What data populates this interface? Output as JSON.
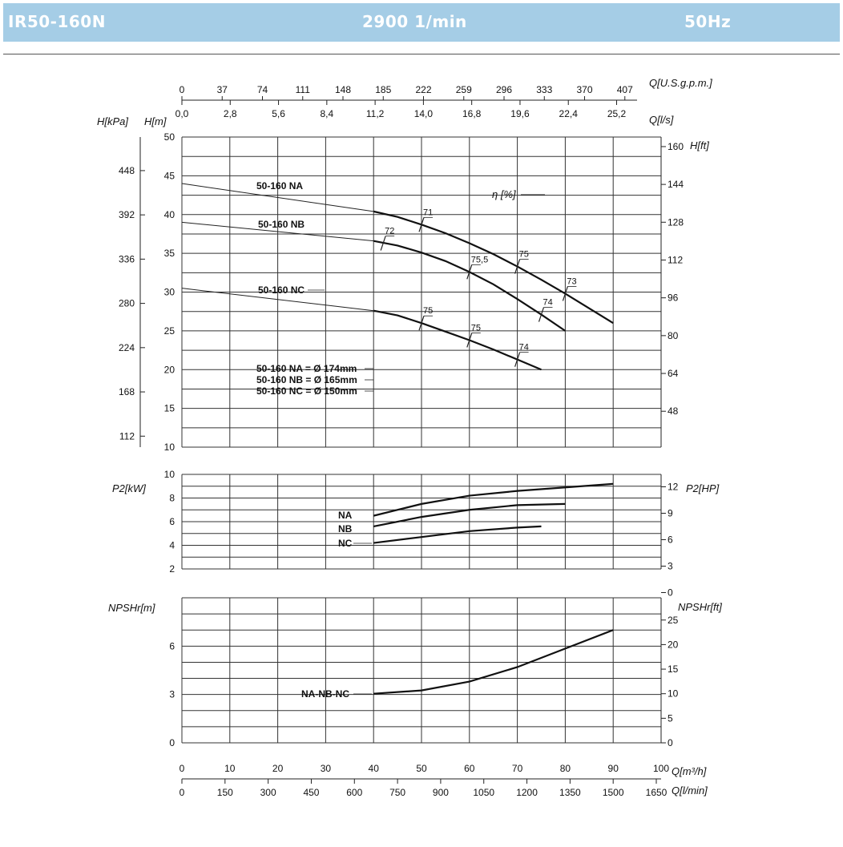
{
  "header": {
    "model": "IR50-160N",
    "speed": "2900 1/min",
    "frequency": "50Hz",
    "color": "#a5cde6"
  },
  "chart_data": {
    "type": "line",
    "flow_scales": {
      "m3h_label": "Q[m³/h]",
      "m3h_ticks": [
        "0",
        "10",
        "20",
        "30",
        "40",
        "50",
        "60",
        "70",
        "80",
        "90",
        "100"
      ],
      "lmin_label": "Q[l/min]",
      "lmin_ticks": [
        "0",
        "150",
        "300",
        "450",
        "600",
        "750",
        "900",
        "1050",
        "1200",
        "1350",
        "1500",
        "1650"
      ],
      "usgpm_label": "Q[U.S.g.p.m.]",
      "usgpm_ticks": [
        "0",
        "37",
        "74",
        "111",
        "148",
        "185",
        "222",
        "259",
        "296",
        "333",
        "370",
        "407"
      ],
      "ls_label": "Q[l/s]",
      "ls_ticks": [
        "0,0",
        "2,8",
        "5,6",
        "8,4",
        "11,2",
        "14,0",
        "16,8",
        "19,6",
        "22,4",
        "25,2"
      ]
    },
    "head": {
      "ylabel_m": "H[m]",
      "ylabel_kpa": "H[kPa]",
      "ylabel_ft": "H[ft]",
      "ylim": [
        10,
        50
      ],
      "m_ticks": [
        "10",
        "15",
        "20",
        "25",
        "30",
        "35",
        "40",
        "45",
        "50"
      ],
      "kpa_ticks": [
        "112",
        "168",
        "224",
        "280",
        "336",
        "392",
        "448"
      ],
      "ft_ticks": [
        "48",
        "64",
        "80",
        "96",
        "112",
        "128",
        "144",
        "160"
      ],
      "eta_label": "η [%]",
      "series": [
        {
          "name": "50-160 NA",
          "x": [
            40,
            45,
            50,
            55,
            60,
            65,
            70,
            75,
            80,
            85,
            90
          ],
          "y": [
            40.4,
            39.7,
            38.7,
            37.6,
            36.3,
            34.9,
            33.3,
            31.6,
            29.8,
            27.9,
            26.0
          ],
          "ext_x": [
            0,
            40
          ],
          "ext_y": [
            44.0,
            40.4
          ],
          "eff": [
            {
              "x": 50,
              "y": 38.7,
              "label": "71"
            },
            {
              "x": 70,
              "y": 33.3,
              "label": "75"
            },
            {
              "x": 80,
              "y": 29.8,
              "label": "73"
            }
          ]
        },
        {
          "name": "50-160 NB",
          "x": [
            40,
            45,
            50,
            55,
            60,
            65,
            70,
            75,
            80
          ],
          "y": [
            36.6,
            36.0,
            35.1,
            34.0,
            32.6,
            31.0,
            29.1,
            27.1,
            25.0
          ],
          "ext_x": [
            0,
            40
          ],
          "ext_y": [
            39.0,
            36.6
          ],
          "eff": [
            {
              "x": 42,
              "y": 36.3,
              "label": "72"
            },
            {
              "x": 60,
              "y": 32.6,
              "label": "75,5"
            },
            {
              "x": 75,
              "y": 27.1,
              "label": "74"
            }
          ]
        },
        {
          "name": "50-160 NC",
          "x": [
            40,
            45,
            50,
            55,
            60,
            65,
            70,
            75
          ],
          "y": [
            27.6,
            27.0,
            26.0,
            24.9,
            23.8,
            22.6,
            21.3,
            20.0
          ],
          "ext_x": [
            0,
            40
          ],
          "ext_y": [
            30.5,
            27.6
          ],
          "eff": [
            {
              "x": 50,
              "y": 26.0,
              "label": "75"
            },
            {
              "x": 60,
              "y": 23.8,
              "label": "75"
            },
            {
              "x": 70,
              "y": 21.3,
              "label": "74"
            }
          ]
        }
      ],
      "diameters": [
        "50-160 NA = Ø 174mm",
        "50-160 NB = Ø 165mm",
        "50-160 NC = Ø 150mm"
      ]
    },
    "power": {
      "ylabel_kw": "P2[kW]",
      "ylabel_hp": "P2[HP]",
      "ylim": [
        2,
        10
      ],
      "kw_ticks": [
        "2",
        "4",
        "6",
        "8",
        "10"
      ],
      "hp_ticks": [
        "0",
        "3",
        "6",
        "9",
        "12"
      ],
      "series": [
        {
          "name": "NA",
          "x": [
            40,
            50,
            60,
            70,
            80,
            90
          ],
          "y": [
            6.5,
            7.5,
            8.2,
            8.6,
            8.9,
            9.2
          ]
        },
        {
          "name": "NB",
          "x": [
            40,
            50,
            60,
            70,
            80
          ],
          "y": [
            5.6,
            6.4,
            7.0,
            7.4,
            7.5
          ]
        },
        {
          "name": "NC",
          "x": [
            40,
            50,
            60,
            70,
            75
          ],
          "y": [
            4.2,
            4.7,
            5.2,
            5.5,
            5.6
          ]
        }
      ]
    },
    "npsh": {
      "ylabel_m": "NPSHr[m]",
      "ylabel_ft": "NPSHr[ft]",
      "ylim": [
        0,
        9
      ],
      "m_ticks": [
        "0",
        "3",
        "6"
      ],
      "ft_ticks": [
        "0",
        "5",
        "10",
        "15",
        "20",
        "25"
      ],
      "series": [
        {
          "name": "NA-NB-NC",
          "x": [
            40,
            50,
            60,
            70,
            80,
            90
          ],
          "y": [
            3.05,
            3.25,
            3.8,
            4.7,
            5.85,
            7.0
          ]
        }
      ]
    }
  }
}
